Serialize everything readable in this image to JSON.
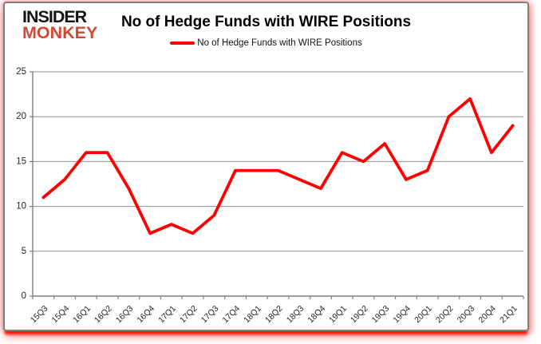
{
  "logo": {
    "line1": "INSIDER",
    "line2": "MONKEY"
  },
  "header": {
    "title": "No of Hedge Funds with WIRE Positions"
  },
  "legend": {
    "label": "No of Hedge Funds with WIRE Positions"
  },
  "colors": {
    "line": "#ff0000",
    "grid": "#8e8e8e",
    "axis": "#7f7f7f",
    "tick_label": "#262626",
    "logo_black": "#141414",
    "logo_red": "#d14836",
    "card_border": "#7f7f7f",
    "shadow_red": "#ff0000"
  },
  "chart_data": {
    "type": "line",
    "title": "No of Hedge Funds with WIRE Positions",
    "categories": [
      "15Q3",
      "15Q4",
      "16Q1",
      "16Q2",
      "16Q3",
      "16Q4",
      "17Q1",
      "17Q2",
      "17Q3",
      "17Q4",
      "18Q1",
      "18Q2",
      "18Q3",
      "18Q4",
      "19Q1",
      "19Q2",
      "19Q3",
      "19Q4",
      "20Q1",
      "20Q2",
      "20Q3",
      "20Q4",
      "21Q1"
    ],
    "series": [
      {
        "name": "No of Hedge Funds with WIRE Positions",
        "values": [
          11,
          13,
          16,
          16,
          12,
          7,
          8,
          7,
          9,
          14,
          14,
          14,
          13,
          12,
          16,
          15,
          17,
          13,
          14,
          20,
          22,
          16,
          19
        ]
      }
    ],
    "xlabel": "",
    "ylabel": "",
    "ylim": [
      0,
      25
    ],
    "yticks": [
      0,
      5,
      10,
      15,
      20,
      25
    ],
    "grid": true,
    "legend_position": "top-center"
  }
}
